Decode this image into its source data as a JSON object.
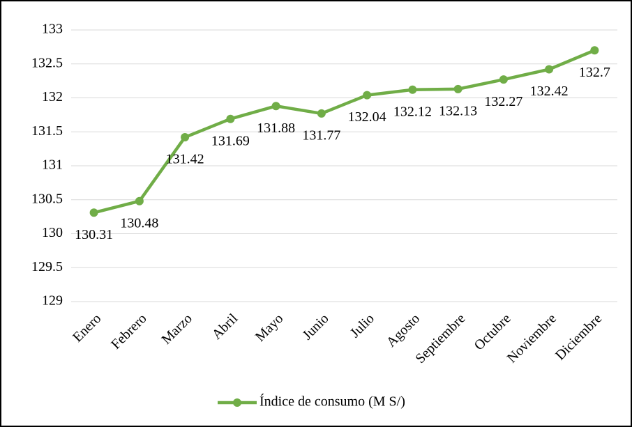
{
  "chart_data": {
    "type": "line",
    "categories": [
      "Enero",
      "Febrero",
      "Marzo",
      "Abril",
      "Mayo",
      "Junio",
      "Julio",
      "Agosto",
      "Septiembre",
      "Octubre",
      "Noviembre",
      "Diciembre"
    ],
    "series": [
      {
        "name": "Índice de consumo (M S/)",
        "color": "#70ad47",
        "values": [
          130.31,
          130.48,
          131.42,
          131.69,
          131.88,
          131.77,
          132.04,
          132.12,
          132.13,
          132.27,
          132.42,
          132.7
        ]
      }
    ],
    "ylim": [
      129,
      133
    ],
    "yticks": [
      129,
      129.5,
      130,
      130.5,
      131,
      131.5,
      132,
      132.5,
      133
    ],
    "grid": true,
    "legend": "bottom"
  }
}
